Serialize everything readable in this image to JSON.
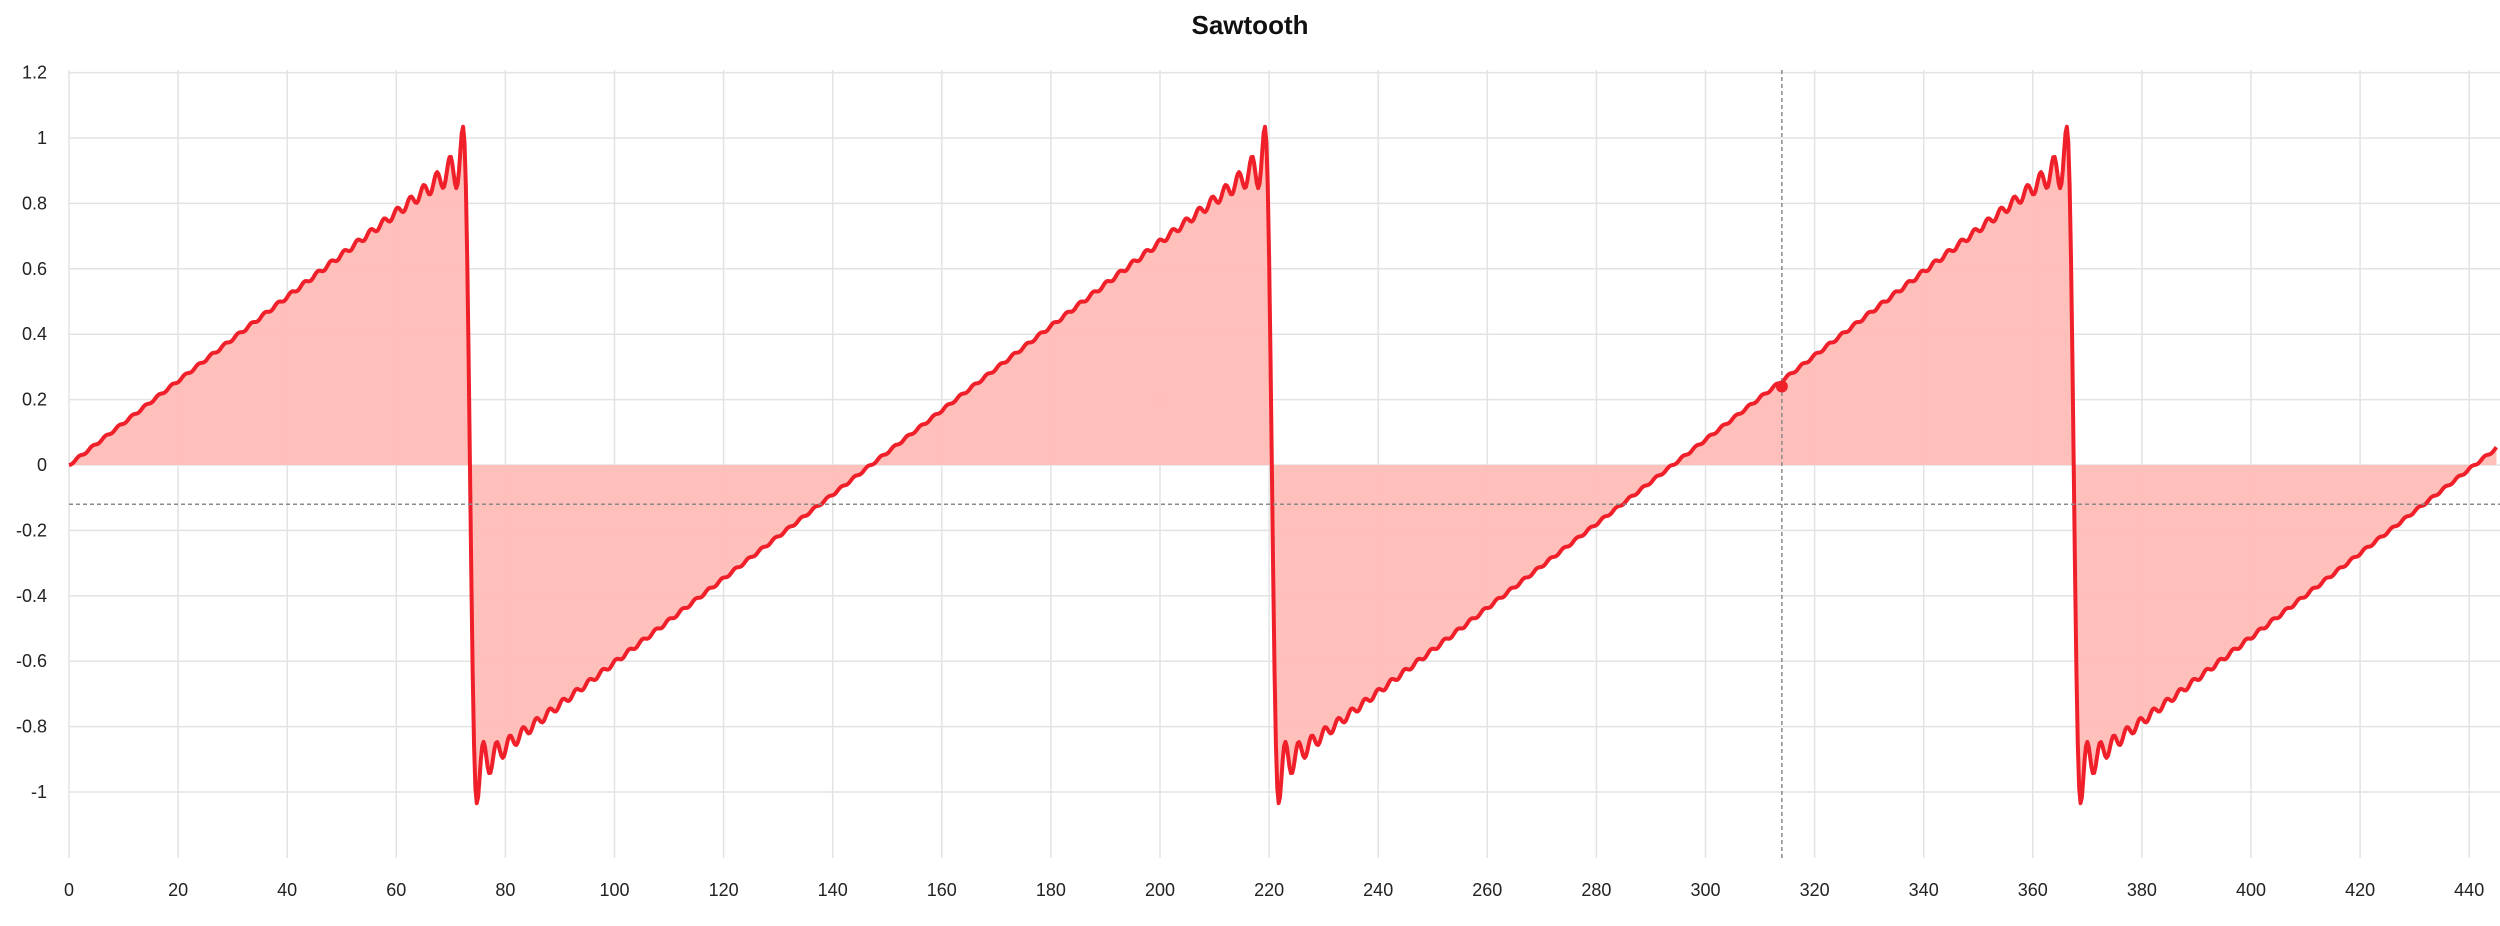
{
  "chart_data": {
    "type": "area",
    "title": "Sawtooth",
    "xlabel": "",
    "ylabel": "",
    "xlim": [
      0,
      445
    ],
    "ylim": [
      -1.2,
      1.2
    ],
    "x_ticks": [
      0,
      20,
      40,
      60,
      80,
      100,
      120,
      140,
      160,
      180,
      200,
      220,
      240,
      260,
      280,
      300,
      320,
      340,
      360,
      380,
      400,
      420,
      440
    ],
    "y_ticks": [
      1.2,
      1,
      0.8,
      0.6,
      0.4,
      0.2,
      0,
      -0.2,
      -0.4,
      -0.6,
      -0.8,
      -1
    ],
    "y_tick_labels": [
      "1.2",
      "1",
      "0.8",
      "0.6",
      "0.4",
      "0.2",
      "0",
      "-0.2",
      "-0.4",
      "-0.6",
      "-0.8",
      "-1"
    ],
    "grid": true,
    "series": [
      {
        "period": 147,
        "x_start": 0,
        "x_end": 445,
        "shape": "sawtooth (Fourier approximation, Gibbs ringing at discontinuities)",
        "approx_values": {
          "x": [
            0,
            20,
            40,
            60,
            70,
            72,
            73,
            74,
            75,
            80,
            100,
            120,
            140,
            147,
            160,
            200,
            219,
            221,
            222,
            240,
            280,
            294,
            314,
            340,
            366,
            368,
            369,
            400,
            441,
            445
          ],
          "y": [
            0,
            0.23,
            0.47,
            0.7,
            0.82,
            0.94,
            0.6,
            -0.62,
            -0.94,
            -0.8,
            -0.56,
            -0.3,
            -0.07,
            0,
            0.16,
            0.64,
            0.94,
            -0.62,
            -0.94,
            -0.74,
            -0.26,
            0,
            0.24,
            0.53,
            0.94,
            -0.62,
            -0.94,
            -0.57,
            -0.07,
            0.06
          ]
        }
      }
    ],
    "colors": {
      "line": "#f0202a",
      "fill": "#ffbcb6",
      "crosshair": "#8a8a8a"
    },
    "crosshair": {
      "x": 314,
      "y": -0.12,
      "point_y": 0.24
    }
  }
}
